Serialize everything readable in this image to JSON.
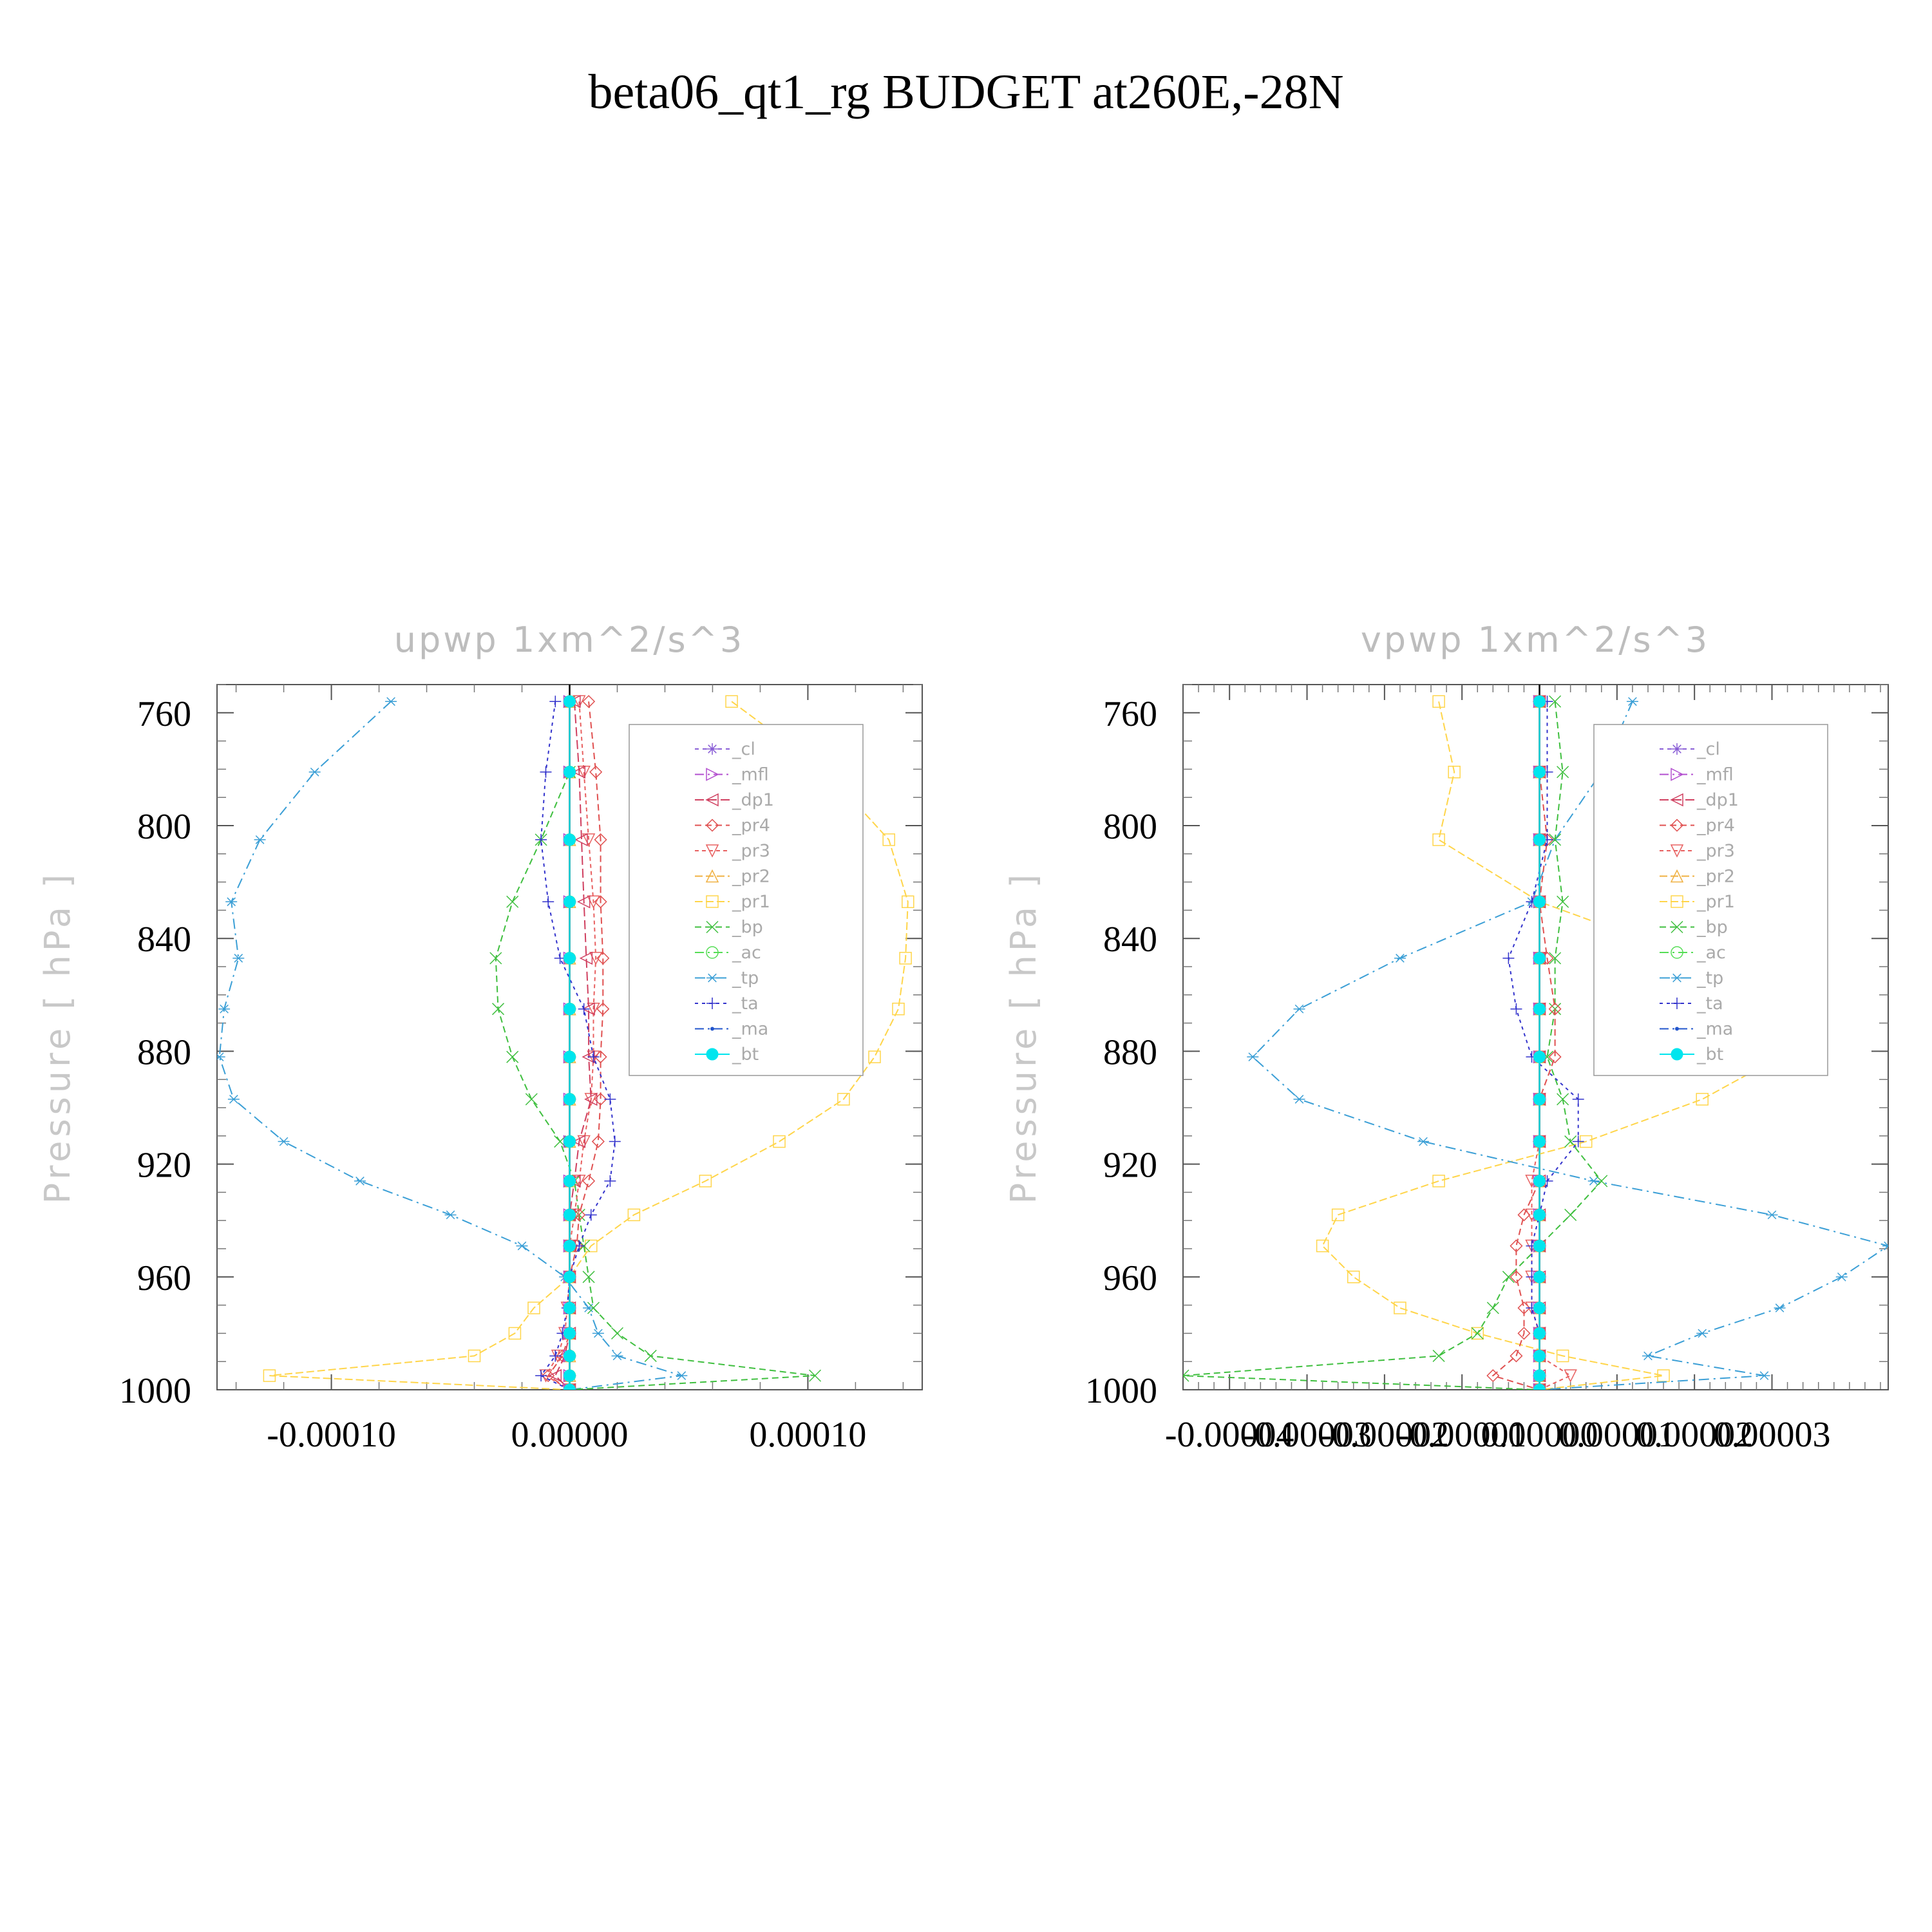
{
  "title": "beta06_qt1_rg  BUDGET at260E,-28N",
  "legend_labels": [
    "_cl",
    "_mfl",
    "_dp1",
    "_pr4",
    "_pr3",
    "_pr2",
    "_pr1",
    "_bp",
    "_ac",
    "_tp",
    "_ta",
    "_ma",
    "_bt"
  ],
  "series_colors": {
    "_cl": "#8a5fd6",
    "_mfl": "#b34fcf",
    "_dp1": "#d04060",
    "_pr4": "#e05050",
    "_pr3": "#e86060",
    "_pr2": "#f0b040",
    "_pr1": "#ffd54a",
    "_bp": "#3fbf3f",
    "_ac": "#55dd55",
    "_tp": "#3b9fd6",
    "_ta": "#3333cc",
    "_ma": "#2255cc",
    "_bt": "#00e5ee"
  },
  "chart_data": [
    {
      "type": "line",
      "title": "upwp    1xm^2/s^3",
      "ylabel": "Pressure  [ hPa ]",
      "xlim": [
        -0.000148,
        0.000148
      ],
      "ylim": [
        1000,
        750
      ],
      "x_tick_labels": [
        "-0.00010",
        "0.00000",
        "0.00010"
      ],
      "x_ticks": [
        -0.0001,
        0.0,
        0.0001
      ],
      "y_tick_labels": [
        "760",
        "800",
        "840",
        "880",
        "920",
        "960",
        "1000"
      ],
      "y_ticks": [
        760,
        800,
        840,
        880,
        920,
        960,
        1000
      ],
      "levels": [
        756,
        781,
        805,
        827,
        847,
        865,
        882,
        897,
        912,
        926,
        938,
        949,
        960,
        971,
        980,
        988,
        995,
        1000
      ],
      "series": [
        {
          "name": "_pr1",
          "values": [
            6.8e-05,
            0.000108,
            0.000134,
            0.000142,
            0.000141,
            0.000138,
            0.000128,
            0.000115,
            8.8e-05,
            5.7e-05,
            2.7e-05,
            9e-06,
            0.0,
            -1.5e-05,
            -2.3e-05,
            -4e-05,
            -0.000126,
            0.0
          ]
        },
        {
          "name": "_pr2",
          "values": [
            0.0,
            0.0,
            0.0,
            0.0,
            0.0,
            0.0,
            0.0,
            0.0,
            0.0,
            0.0,
            0.0,
            0.0,
            0.0,
            0.0,
            0.0,
            0.0,
            0.0,
            0.0
          ]
        },
        {
          "name": "_tp",
          "values": [
            -7.5e-05,
            -0.000107,
            -0.00013,
            -0.000142,
            -0.000139,
            -0.000145,
            -0.000147,
            -0.000141,
            -0.00012,
            -8.8e-05,
            -5e-05,
            -2e-05,
            -2e-06,
            8e-06,
            1.2e-05,
            2e-05,
            4.7e-05,
            0.0
          ]
        },
        {
          "name": "_bp",
          "values": [
            0.0,
            0.0,
            -1.2e-05,
            -2.4e-05,
            -3.1e-05,
            -3e-05,
            -2.4e-05,
            -1.6e-05,
            -4e-06,
            2e-06,
            4e-06,
            6e-06,
            8e-06,
            1e-05,
            2e-05,
            3.4e-05,
            0.000103,
            0.0
          ]
        },
        {
          "name": "_ac",
          "values": [
            0.0,
            0.0,
            0.0,
            0.0,
            0.0,
            0.0,
            0.0,
            0.0,
            0.0,
            0.0,
            0.0,
            0.0,
            0.0,
            0.0,
            0.0,
            0.0,
            0.0,
            0.0
          ]
        },
        {
          "name": "_pr4",
          "values": [
            8e-06,
            1.1e-05,
            1.3e-05,
            1.3e-05,
            1.4e-05,
            1.4e-05,
            1.3e-05,
            1.3e-05,
            1.2e-05,
            8e-06,
            4e-06,
            3e-06,
            0.0,
            0.0,
            0.0,
            -3e-06,
            -9e-06,
            0.0
          ]
        },
        {
          "name": "_pr3",
          "values": [
            4e-06,
            6e-06,
            8e-06,
            1e-05,
            1.1e-05,
            1e-05,
            1e-05,
            9e-06,
            6e-06,
            4e-06,
            2e-06,
            0.0,
            0.0,
            -1e-06,
            -2e-06,
            -5e-06,
            -1e-05,
            0.0
          ]
        },
        {
          "name": "_dp1",
          "values": [
            2e-06,
            4e-06,
            5e-06,
            6e-06,
            7e-06,
            8e-06,
            8e-06,
            9e-06,
            4e-06,
            2e-06,
            0.0,
            0.0,
            0.0,
            0.0,
            0.0,
            -2e-06,
            -6e-06,
            0.0
          ]
        },
        {
          "name": "_ta",
          "values": [
            -6e-06,
            -1e-05,
            -1.2e-05,
            -9e-06,
            -4e-06,
            6e-06,
            1e-05,
            1.7e-05,
            1.9e-05,
            1.7e-05,
            9e-06,
            4e-06,
            0.0,
            -1e-06,
            -3e-06,
            -6e-06,
            -1.2e-05,
            0.0
          ]
        },
        {
          "name": "_ma",
          "values": [
            0.0,
            0.0,
            0.0,
            0.0,
            0.0,
            0.0,
            0.0,
            0.0,
            0.0,
            0.0,
            0.0,
            0.0,
            0.0,
            0.0,
            0.0,
            0.0,
            0.0,
            0.0
          ]
        },
        {
          "name": "_cl",
          "values": [
            0.0,
            0.0,
            0.0,
            0.0,
            0.0,
            0.0,
            0.0,
            0.0,
            0.0,
            0.0,
            0.0,
            0.0,
            0.0,
            0.0,
            0.0,
            0.0,
            0.0,
            0.0
          ]
        },
        {
          "name": "_mfl",
          "values": [
            0.0,
            0.0,
            0.0,
            0.0,
            0.0,
            0.0,
            0.0,
            0.0,
            0.0,
            0.0,
            0.0,
            0.0,
            0.0,
            0.0,
            0.0,
            0.0,
            0.0,
            0.0
          ]
        },
        {
          "name": "_bt",
          "values": [
            0.0,
            0.0,
            0.0,
            0.0,
            0.0,
            0.0,
            0.0,
            0.0,
            0.0,
            0.0,
            0.0,
            0.0,
            0.0,
            0.0,
            0.0,
            0.0,
            0.0,
            0.0
          ]
        }
      ]
    },
    {
      "type": "line",
      "title": "vpwp    1xm^2/s^3",
      "ylabel": "Pressure  [ hPa ]",
      "xlim": [
        -4.6e-05,
        4.5e-05
      ],
      "ylim": [
        1000,
        750
      ],
      "x_tick_labels": [
        "-0.00004",
        "-0.00003",
        "-0.00002",
        "-0.00001",
        "0.00000",
        "0.00001",
        "0.00002",
        "0.00003"
      ],
      "x_ticks": [
        -4e-05,
        -3e-05,
        -2e-05,
        -1e-05,
        0.0,
        1e-05,
        2e-05,
        3e-05
      ],
      "y_tick_labels": [
        "760",
        "800",
        "840",
        "880",
        "920",
        "960",
        "1000"
      ],
      "y_ticks": [
        760,
        800,
        840,
        880,
        920,
        960,
        1000
      ],
      "levels": [
        756,
        781,
        805,
        827,
        847,
        865,
        882,
        897,
        912,
        926,
        938,
        949,
        960,
        971,
        980,
        988,
        995,
        1000
      ],
      "series": [
        {
          "name": "_pr1",
          "values": [
            -1.3e-05,
            -1.1e-05,
            -1.3e-05,
            0.0,
            2e-05,
            3e-05,
            3.1e-05,
            2.1e-05,
            6e-06,
            -1.3e-05,
            -2.6e-05,
            -2.8e-05,
            -2.4e-05,
            -1.8e-05,
            -8e-06,
            3e-06,
            1.6e-05,
            0.0
          ]
        },
        {
          "name": "_pr2",
          "values": [
            0.0,
            0.0,
            0.0,
            0.0,
            0.0,
            0.0,
            0.0,
            0.0,
            0.0,
            0.0,
            0.0,
            0.0,
            0.0,
            0.0,
            0.0,
            0.0,
            0.0,
            0.0
          ]
        },
        {
          "name": "_tp",
          "values": [
            1.2e-05,
            8e-06,
            2e-06,
            -1e-06,
            -1.8e-05,
            -3.1e-05,
            -3.7e-05,
            -3.1e-05,
            -1.5e-05,
            7e-06,
            3e-05,
            4.5e-05,
            3.9e-05,
            3.1e-05,
            2.1e-05,
            1.4e-05,
            2.9e-05,
            0.0
          ]
        },
        {
          "name": "_bp",
          "values": [
            2e-06,
            3e-06,
            2e-06,
            3e-06,
            2e-06,
            2e-06,
            1e-06,
            3e-06,
            4e-06,
            8e-06,
            4e-06,
            0.0,
            -4e-06,
            -6e-06,
            -8e-06,
            -1.3e-05,
            -4.6e-05,
            0.0
          ]
        },
        {
          "name": "_ac",
          "values": [
            0.0,
            0.0,
            0.0,
            0.0,
            0.0,
            0.0,
            0.0,
            0.0,
            0.0,
            0.0,
            0.0,
            0.0,
            0.0,
            0.0,
            0.0,
            0.0,
            0.0,
            0.0
          ]
        },
        {
          "name": "_pr4",
          "values": [
            0.0,
            0.0,
            1e-06,
            0.0,
            1e-06,
            2e-06,
            2e-06,
            0.0,
            0.0,
            0.0,
            -2e-06,
            -3e-06,
            -3e-06,
            -2e-06,
            -2e-06,
            -3e-06,
            -6e-06,
            0.0
          ]
        },
        {
          "name": "_pr3",
          "values": [
            0.0,
            0.0,
            0.0,
            0.0,
            0.0,
            0.0,
            0.0,
            0.0,
            0.0,
            -1e-06,
            -1e-06,
            -1e-06,
            -1e-06,
            -1e-06,
            0.0,
            0.0,
            4e-06,
            0.0
          ]
        },
        {
          "name": "_dp1",
          "values": [
            0.0,
            0.0,
            0.0,
            0.0,
            0.0,
            0.0,
            0.0,
            0.0,
            0.0,
            0.0,
            0.0,
            0.0,
            0.0,
            0.0,
            0.0,
            0.0,
            0.0,
            0.0
          ]
        },
        {
          "name": "_ta",
          "values": [
            1e-06,
            1e-06,
            1e-06,
            -1e-06,
            -4e-06,
            -3e-06,
            -1e-06,
            5e-06,
            5e-06,
            1e-06,
            0.0,
            -1e-06,
            -1e-06,
            -1e-06,
            0.0,
            0.0,
            0.0,
            0.0
          ]
        },
        {
          "name": "_ma",
          "values": [
            0.0,
            0.0,
            0.0,
            0.0,
            0.0,
            0.0,
            0.0,
            0.0,
            0.0,
            0.0,
            0.0,
            0.0,
            0.0,
            0.0,
            0.0,
            0.0,
            0.0,
            0.0
          ]
        },
        {
          "name": "_cl",
          "values": [
            0.0,
            0.0,
            0.0,
            0.0,
            0.0,
            0.0,
            0.0,
            0.0,
            0.0,
            0.0,
            0.0,
            0.0,
            0.0,
            0.0,
            0.0,
            0.0,
            0.0,
            0.0
          ]
        },
        {
          "name": "_mfl",
          "values": [
            0.0,
            0.0,
            0.0,
            0.0,
            0.0,
            0.0,
            0.0,
            0.0,
            0.0,
            0.0,
            0.0,
            0.0,
            0.0,
            0.0,
            0.0,
            0.0,
            0.0,
            0.0
          ]
        },
        {
          "name": "_bt",
          "values": [
            0.0,
            0.0,
            0.0,
            0.0,
            0.0,
            0.0,
            0.0,
            0.0,
            0.0,
            0.0,
            0.0,
            0.0,
            0.0,
            0.0,
            0.0,
            0.0,
            0.0,
            0.0
          ]
        }
      ]
    }
  ]
}
